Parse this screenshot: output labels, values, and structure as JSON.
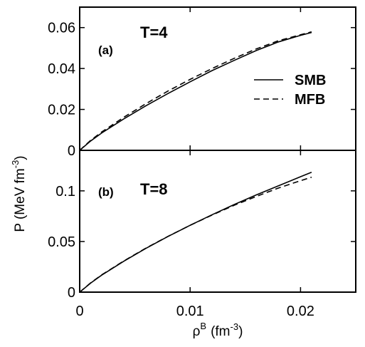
{
  "chart_data": [
    {
      "type": "line",
      "panel_tag": "(a)",
      "temperature_label": "T=4",
      "xlim": [
        0,
        0.025
      ],
      "ylim": [
        0,
        0.07
      ],
      "x_ticks": [
        0,
        0.01,
        0.02
      ],
      "y_ticks": [
        {
          "value": 0,
          "label": "0"
        },
        {
          "value": 0.02,
          "label": "0.02"
        },
        {
          "value": 0.04,
          "label": "0.04"
        },
        {
          "value": 0.06,
          "label": "0.06"
        }
      ],
      "x_tick_labels_visible": false,
      "legend": {
        "position": "right",
        "entries": [
          "SMB",
          "MFB"
        ]
      },
      "series": [
        {
          "name": "SMB",
          "style": "solid",
          "x": [
            0,
            0.001,
            0.002,
            0.004,
            0.006,
            0.008,
            0.01,
            0.012,
            0.014,
            0.016,
            0.018,
            0.02,
            0.021
          ],
          "y": [
            0,
            0.0046,
            0.0085,
            0.0154,
            0.0218,
            0.0278,
            0.0335,
            0.039,
            0.044,
            0.0488,
            0.053,
            0.0562,
            0.0576
          ]
        },
        {
          "name": "MFB",
          "style": "dashed",
          "x": [
            0,
            0.001,
            0.002,
            0.004,
            0.006,
            0.008,
            0.01,
            0.012,
            0.014,
            0.016,
            0.018,
            0.02,
            0.021
          ],
          "y": [
            0,
            0.0049,
            0.009,
            0.0162,
            0.0228,
            0.029,
            0.0347,
            0.04,
            0.045,
            0.0496,
            0.0536,
            0.0565,
            0.0579
          ]
        }
      ]
    },
    {
      "type": "line",
      "panel_tag": "(b)",
      "temperature_label": "T=8",
      "xlim": [
        0,
        0.025
      ],
      "ylim": [
        0,
        0.14
      ],
      "x_ticks": [
        0,
        0.01,
        0.02
      ],
      "x_tick_labels": [
        "0",
        "0.01",
        "0.02"
      ],
      "y_ticks": [
        {
          "value": 0,
          "label": "0"
        },
        {
          "value": 0.05,
          "label": "0.05"
        },
        {
          "value": 0.1,
          "label": "0.1"
        }
      ],
      "xlabel": {
        "base": "ρ",
        "sup": "B",
        "unit": "(fm",
        "unit_sup": "-3",
        "close": ")"
      },
      "series": [
        {
          "name": "SMB",
          "style": "solid",
          "x": [
            0,
            0.001,
            0.002,
            0.004,
            0.006,
            0.008,
            0.01,
            0.012,
            0.014,
            0.016,
            0.018,
            0.02,
            0.021
          ],
          "y": [
            0,
            0.009,
            0.0168,
            0.0305,
            0.0432,
            0.055,
            0.066,
            0.0765,
            0.0865,
            0.096,
            0.105,
            0.114,
            0.1183
          ]
        },
        {
          "name": "MFB",
          "style": "dashed",
          "x": [
            0,
            0.001,
            0.002,
            0.004,
            0.006,
            0.008,
            0.01,
            0.012,
            0.014,
            0.016,
            0.018,
            0.02,
            0.021
          ],
          "y": [
            0,
            0.0092,
            0.0171,
            0.0308,
            0.0435,
            0.0551,
            0.066,
            0.0762,
            0.0858,
            0.0945,
            0.1028,
            0.11,
            0.1135
          ]
        }
      ]
    }
  ],
  "ylabel": {
    "text": "P (MeV fm",
    "sup": "-3",
    "close": ")"
  }
}
